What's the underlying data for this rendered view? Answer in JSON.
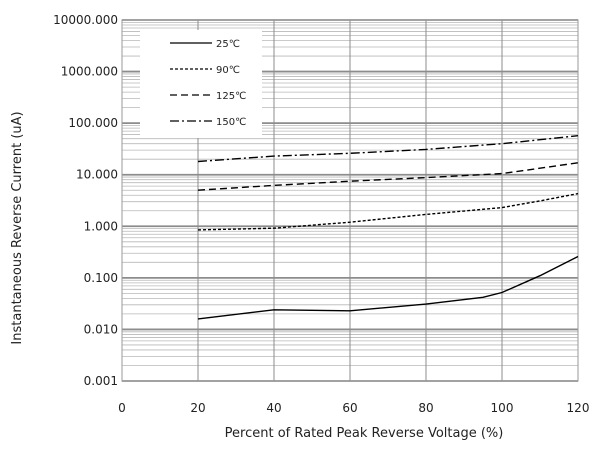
{
  "chart_data": {
    "type": "line",
    "xlabel": "Percent of  Rated Peak Reverse Voltage (%)",
    "ylabel": "Instantaneous Reverse Current (uA)",
    "xlim": [
      0,
      120
    ],
    "ylim": [
      0.001,
      10000
    ],
    "yscale": "log",
    "grid": true,
    "legend_position": "top-left",
    "x_ticks": [
      "0",
      "20",
      "40",
      "60",
      "80",
      "100",
      "120"
    ],
    "y_ticks": [
      "0.001",
      "0.010",
      "0.100",
      "1.000",
      "10.000",
      "100.000",
      "1000.000",
      "10000.000"
    ],
    "series": [
      {
        "name": "25℃",
        "dash": "solid",
        "color": "#000000",
        "points": [
          [
            20,
            0.016
          ],
          [
            40,
            0.024
          ],
          [
            60,
            0.023
          ],
          [
            80,
            0.031
          ],
          [
            95,
            0.042
          ],
          [
            100,
            0.052
          ],
          [
            110,
            0.11
          ],
          [
            120,
            0.26
          ]
        ]
      },
      {
        "name": "90℃",
        "dash": "dotted",
        "color": "#000000",
        "points": [
          [
            20,
            0.85
          ],
          [
            40,
            0.92
          ],
          [
            60,
            1.2
          ],
          [
            80,
            1.7
          ],
          [
            100,
            2.3
          ],
          [
            110,
            3.1
          ],
          [
            120,
            4.3
          ]
        ]
      },
      {
        "name": "125℃",
        "dash": "dashed",
        "color": "#000000",
        "points": [
          [
            20,
            5.0
          ],
          [
            40,
            6.2
          ],
          [
            60,
            7.5
          ],
          [
            80,
            8.8
          ],
          [
            100,
            10.5
          ],
          [
            120,
            17.0
          ]
        ]
      },
      {
        "name": "150℃",
        "dash": "dashdot",
        "color": "#000000",
        "points": [
          [
            20,
            18.0
          ],
          [
            40,
            23.0
          ],
          [
            60,
            26.0
          ],
          [
            80,
            31.0
          ],
          [
            100,
            40.0
          ],
          [
            120,
            57.0
          ]
        ]
      }
    ]
  }
}
